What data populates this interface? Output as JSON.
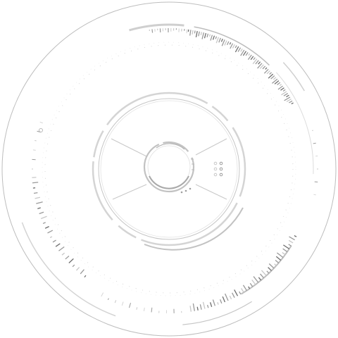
{
  "hud": {
    "icon": "circular-hud-dial-icon",
    "colors": {
      "background": "#ffffff",
      "primary_line": "#bdbdbd",
      "secondary_line": "#d6d6d6",
      "dark_tick": "#6e6e6e",
      "mid_tick": "#9a9a9a",
      "light_tick": "#c8c8c8"
    },
    "indicator_dots": 3
  }
}
